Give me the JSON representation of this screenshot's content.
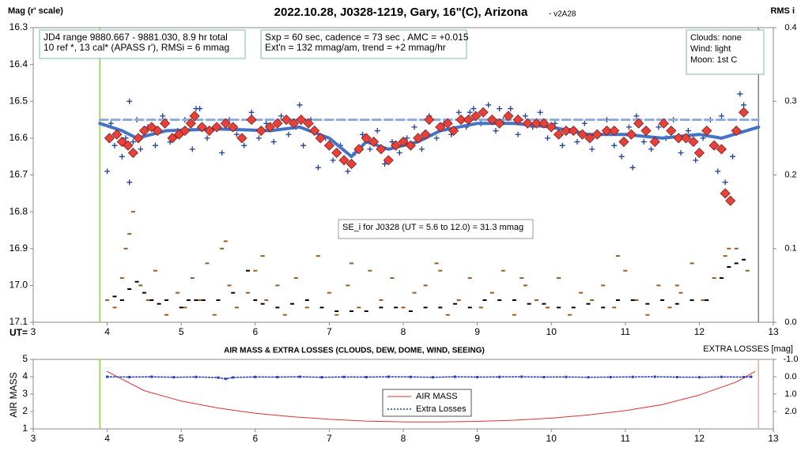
{
  "chart_data": [
    {
      "type": "scatter",
      "title": "2022.10.28, J0328-1219, Gary, 16\"(C), Arizona",
      "subtitle": "- v2A28",
      "ylabel": "Mag (r' scale)",
      "y2label": "RMS i",
      "xlabel": "UT=",
      "xlim": [
        3,
        13
      ],
      "xticks": [
        3,
        4,
        5,
        6,
        7,
        8,
        9,
        10,
        11,
        12,
        13
      ],
      "ylim": [
        16.3,
        17.1
      ],
      "y_inverted": true,
      "yticks": [
        16.3,
        16.4,
        16.5,
        16.6,
        16.7,
        16.8,
        16.9,
        {
          "value": 17,
          "label": "17.0"
        },
        17.1
      ],
      "y2lim": [
        0,
        0.4
      ],
      "y2ticks": [
        {
          "value": 0,
          "label": "0.0"
        },
        0.1,
        0.2,
        0.3,
        0.4
      ],
      "vlines": [
        {
          "x": 3.9,
          "color": "#92d050"
        },
        {
          "x": 12.8,
          "color": "#808080"
        }
      ],
      "annotations": [
        {
          "lines": [
            "JD4 range 9880.667 - 9881.030, 8.9 hr total",
            "10 ref *, 13 cal*  (APASS r'), RMSi = 6 mmag"
          ]
        },
        {
          "lines": [
            "Sxp = 60 sec, cadence = 73 sec , AMC = +0.015",
            "Ext'n = 132 mmag/am, trend = +2 mmag/hr"
          ]
        },
        {
          "lines": [
            "Clouds: none",
            "Wind: light",
            "Moon: 1st C"
          ]
        },
        {
          "lines": [
            "SE_i for J0328 (UT = 5.6 to 12.0) = 31.3 mmag"
          ]
        }
      ],
      "series": [
        {
          "marker": "dash",
          "color": "#9c5b1e",
          "axis": "y2",
          "x": [
            4.0,
            4.1,
            4.2,
            4.25,
            4.35,
            4.45,
            4.55,
            4.65,
            4.8,
            4.95,
            5.05,
            5.15,
            5.25,
            5.35,
            5.45,
            5.55,
            5.65,
            5.75,
            5.9,
            6.0,
            6.15,
            6.3,
            6.4,
            6.55,
            6.7,
            6.85,
            7.0,
            7.1,
            7.25,
            7.4,
            7.55,
            7.7,
            7.85,
            8.0,
            8.15,
            8.3,
            8.45,
            8.6,
            8.75,
            8.9,
            9.05,
            9.2,
            9.35,
            9.5,
            9.65,
            9.8,
            9.95,
            10.1,
            10.25,
            10.4,
            10.55,
            10.7,
            10.85,
            11.0,
            11.15,
            11.3,
            11.45,
            11.6,
            11.75,
            11.9,
            12.05,
            12.2,
            12.35,
            12.5,
            12.65,
            4.3,
            5.6,
            6.1,
            7.3,
            8.5,
            9.6,
            10.9,
            11.7,
            12.4
          ],
          "values": [
            0.03,
            0.02,
            0.06,
            0.1,
            0.15,
            0.05,
            0.03,
            0.07,
            0.01,
            0.04,
            0.02,
            0.06,
            0.03,
            0.08,
            0.01,
            0.1,
            0.05,
            0.02,
            0.04,
            0.07,
            0.03,
            0.05,
            0.01,
            0.06,
            0.02,
            0.09,
            0.04,
            0.01,
            0.05,
            0.02,
            0.07,
            0.03,
            0.06,
            0.02,
            0.04,
            0.05,
            0.08,
            0.01,
            0.03,
            0.06,
            0.02,
            0.04,
            0.07,
            0.01,
            0.05,
            0.03,
            0.02,
            0.06,
            0.01,
            0.04,
            0.03,
            0.05,
            0.02,
            0.07,
            0.03,
            0.01,
            0.05,
            0.02,
            0.04,
            0.08,
            0.03,
            0.06,
            0.09,
            0.1,
            0.07,
            0.12,
            0.11,
            0.09,
            0.08,
            0.07,
            0.06,
            0.09,
            0.05,
            0.1
          ]
        },
        {
          "marker": "dash",
          "color": "#000000",
          "axis": "y2",
          "x": [
            4.1,
            4.2,
            4.3,
            4.4,
            4.5,
            4.6,
            4.7,
            4.8,
            5.0,
            5.1,
            5.2,
            5.3,
            5.5,
            5.7,
            5.9,
            6.0,
            6.1,
            6.3,
            6.5,
            6.7,
            6.9,
            7.1,
            7.3,
            7.5,
            7.7,
            7.9,
            8.1,
            8.3,
            8.5,
            8.7,
            8.9,
            9.1,
            9.3,
            9.5,
            9.7,
            9.9,
            10.1,
            10.3,
            10.5,
            10.7,
            10.9,
            11.1,
            11.3,
            11.5,
            11.7,
            11.9,
            12.1,
            12.3,
            12.4,
            12.5,
            12.6
          ],
          "values": [
            0.035,
            0.03,
            0.045,
            0.055,
            0.04,
            0.03,
            0.025,
            0.03,
            0.02,
            0.03,
            0.03,
            0.03,
            0.03,
            0.04,
            0.07,
            0.03,
            0.025,
            0.02,
            0.025,
            0.03,
            0.02,
            0.015,
            0.015,
            0.015,
            0.02,
            0.02,
            0.015,
            0.02,
            0.02,
            0.025,
            0.02,
            0.03,
            0.03,
            0.03,
            0.025,
            0.025,
            0.02,
            0.02,
            0.025,
            0.02,
            0.03,
            0.03,
            0.025,
            0.03,
            0.025,
            0.03,
            0.03,
            0.06,
            0.075,
            0.08,
            0.085
          ]
        },
        {
          "marker": "plus",
          "color": "#1f3f99",
          "x": [
            4.0,
            4.05,
            4.1,
            4.15,
            4.2,
            4.25,
            4.3,
            4.35,
            4.4,
            4.45,
            4.55,
            4.65,
            4.75,
            4.85,
            4.95,
            5.05,
            5.15,
            5.25,
            5.35,
            5.45,
            5.55,
            5.65,
            5.75,
            5.85,
            5.95,
            6.05,
            6.15,
            6.25,
            6.35,
            6.45,
            6.55,
            6.65,
            6.75,
            6.85,
            6.95,
            7.05,
            7.15,
            7.25,
            7.35,
            7.45,
            7.55,
            7.65,
            7.75,
            7.85,
            7.95,
            8.05,
            8.15,
            8.25,
            8.35,
            8.45,
            8.55,
            8.65,
            8.75,
            8.85,
            8.95,
            9.05,
            9.15,
            9.25,
            9.35,
            9.45,
            9.55,
            9.65,
            9.75,
            9.85,
            9.95,
            10.05,
            10.15,
            10.25,
            10.35,
            10.45,
            10.55,
            10.65,
            10.75,
            10.85,
            10.95,
            11.05,
            11.15,
            11.25,
            11.35,
            11.45,
            11.55,
            11.65,
            11.75,
            11.85,
            11.95,
            12.05,
            12.15,
            12.25,
            12.35,
            12.45,
            12.55,
            12.6,
            4.3,
            5.2,
            6.6,
            8.9,
            9.3,
            11.1,
            12.3
          ],
          "values": [
            16.69,
            16.56,
            16.62,
            16.58,
            16.65,
            16.6,
            16.72,
            16.61,
            16.55,
            16.63,
            16.57,
            16.62,
            16.54,
            16.61,
            16.58,
            16.55,
            16.63,
            16.52,
            16.6,
            16.57,
            16.64,
            16.55,
            16.59,
            16.62,
            16.53,
            16.6,
            16.56,
            16.61,
            16.54,
            16.59,
            16.57,
            16.62,
            16.55,
            16.68,
            16.6,
            16.66,
            16.62,
            16.69,
            16.64,
            16.59,
            16.63,
            16.58,
            16.67,
            16.61,
            16.64,
            16.6,
            16.57,
            16.63,
            16.54,
            16.6,
            16.56,
            16.59,
            16.53,
            16.57,
            16.52,
            16.56,
            16.51,
            16.58,
            16.55,
            16.52,
            16.59,
            16.54,
            16.57,
            16.53,
            16.6,
            16.56,
            16.62,
            16.58,
            16.61,
            16.56,
            16.63,
            16.59,
            16.55,
            16.62,
            16.65,
            16.57,
            16.54,
            16.61,
            16.63,
            16.57,
            16.6,
            16.55,
            16.64,
            16.58,
            16.66,
            16.6,
            16.55,
            16.69,
            16.72,
            16.65,
            16.48,
            16.51,
            16.5,
            16.52,
            16.51,
            16.53,
            16.52,
            16.68,
            16.54
          ]
        },
        {
          "marker": "line",
          "line_style": "dashed",
          "color": "#8eaadb",
          "width": 3,
          "x": [
            3.9,
            12.8
          ],
          "values": [
            16.55,
            16.55
          ]
        },
        {
          "marker": "line",
          "line_style": "solid",
          "color": "#4472c4",
          "width": 4,
          "x": [
            3.9,
            4.2,
            4.4,
            4.8,
            5.5,
            6.2,
            6.6,
            7.0,
            7.3,
            7.5,
            7.8,
            8.2,
            8.5,
            9.0,
            9.5,
            10.0,
            10.5,
            11.0,
            11.5,
            12.0,
            12.3,
            12.8
          ],
          "values": [
            16.56,
            16.58,
            16.6,
            16.58,
            16.575,
            16.58,
            16.57,
            16.6,
            16.65,
            16.61,
            16.63,
            16.61,
            16.58,
            16.56,
            16.56,
            16.57,
            16.59,
            16.59,
            16.6,
            16.59,
            16.6,
            16.57
          ]
        },
        {
          "marker": "diamond",
          "color": "#e8413c",
          "x": [
            4.03,
            4.13,
            4.2,
            4.28,
            4.35,
            4.42,
            4.5,
            4.6,
            4.68,
            4.78,
            4.88,
            4.97,
            5.05,
            5.13,
            5.18,
            5.28,
            5.38,
            5.48,
            5.6,
            5.7,
            5.82,
            5.95,
            6.08,
            6.2,
            6.3,
            6.42,
            6.52,
            6.62,
            6.72,
            6.8,
            6.88,
            7.0,
            7.1,
            7.2,
            7.3,
            7.4,
            7.5,
            7.6,
            7.7,
            7.8,
            7.9,
            8.0,
            8.1,
            8.2,
            8.3,
            8.35,
            8.5,
            8.6,
            8.68,
            8.78,
            8.88,
            8.98,
            9.08,
            9.2,
            9.3,
            9.42,
            9.55,
            9.68,
            9.8,
            9.9,
            10.0,
            10.1,
            10.2,
            10.3,
            10.42,
            10.52,
            10.62,
            10.75,
            10.85,
            10.98,
            11.08,
            11.18,
            11.28,
            11.4,
            11.52,
            11.62,
            11.72,
            11.82,
            11.92,
            12.0,
            12.1,
            12.2,
            12.3,
            12.35,
            12.42,
            12.5,
            12.6
          ],
          "values": [
            16.6,
            16.59,
            16.61,
            16.62,
            16.64,
            16.6,
            16.58,
            16.57,
            16.58,
            16.56,
            16.6,
            16.59,
            16.58,
            16.56,
            16.54,
            16.57,
            16.58,
            16.57,
            16.56,
            16.57,
            16.6,
            16.55,
            16.58,
            16.57,
            16.56,
            16.55,
            16.56,
            16.55,
            16.56,
            16.58,
            16.6,
            16.62,
            16.64,
            16.66,
            16.67,
            16.63,
            16.6,
            16.61,
            16.63,
            16.66,
            16.62,
            16.61,
            16.62,
            16.6,
            16.59,
            16.55,
            16.57,
            16.56,
            16.58,
            16.55,
            16.55,
            16.54,
            16.53,
            16.55,
            16.56,
            16.54,
            16.55,
            16.56,
            16.56,
            16.56,
            16.57,
            16.59,
            16.58,
            16.58,
            16.59,
            16.6,
            16.59,
            16.58,
            16.58,
            16.61,
            16.59,
            16.56,
            16.58,
            16.61,
            16.56,
            16.58,
            16.6,
            16.6,
            16.61,
            16.64,
            16.58,
            16.62,
            16.63,
            16.75,
            16.77,
            16.58,
            16.53
          ]
        }
      ]
    },
    {
      "type": "line",
      "title": "AIR MASS & EXTRA LOSSES (CLOUDS, DEW, DOME, WIND, SEEING)",
      "ylabel": "AIR MASS",
      "y2label": "EXTRA LOSSES [mag]",
      "xlim": [
        3,
        13
      ],
      "xticks": [
        3,
        4,
        5,
        6,
        7,
        8,
        9,
        10,
        11,
        12,
        13
      ],
      "ylim": [
        1,
        5
      ],
      "yticks": [
        1,
        2,
        3,
        4,
        5
      ],
      "y2lim": [
        -1,
        3
      ],
      "y2_inverted": true,
      "y2ticks": [
        {
          "value": -1,
          "label": "-1.0"
        },
        {
          "value": 0,
          "label": "0.0"
        },
        {
          "value": 1,
          "label": "1.0"
        },
        {
          "value": 2,
          "label": "2.0"
        }
      ],
      "vlines": [
        {
          "x": 3.9,
          "color": "#92d050"
        },
        {
          "x": 12.8,
          "color": "#f4a6a0"
        }
      ],
      "series": [
        {
          "name": "AIR MASS",
          "marker": "line",
          "line_style": "solid",
          "color": "#e03030",
          "width": 1,
          "x": [
            4.0,
            4.5,
            5.0,
            5.5,
            6.0,
            6.5,
            7.0,
            7.5,
            8.0,
            8.5,
            9.0,
            9.5,
            10.0,
            10.5,
            11.0,
            11.5,
            12.0,
            12.5,
            12.75
          ],
          "values": [
            4.3,
            3.2,
            2.6,
            2.2,
            1.9,
            1.7,
            1.55,
            1.45,
            1.4,
            1.4,
            1.43,
            1.5,
            1.62,
            1.8,
            2.05,
            2.4,
            2.95,
            3.7,
            4.3
          ]
        },
        {
          "name": "Extra Losses",
          "marker": "line",
          "line_style": "dotted",
          "points": true,
          "color": "#1f3fbf",
          "width": 1.5,
          "axis": "y2",
          "x": [
            4.0,
            4.3,
            4.6,
            4.9,
            5.2,
            5.5,
            5.6,
            5.7,
            6.0,
            6.3,
            6.6,
            6.9,
            7.2,
            7.5,
            7.8,
            8.1,
            8.4,
            8.7,
            9.0,
            9.3,
            9.6,
            9.9,
            10.2,
            10.5,
            10.8,
            11.1,
            11.4,
            11.7,
            12.0,
            12.3,
            12.6,
            12.7
          ],
          "values": [
            0.0,
            0.02,
            0.0,
            0.03,
            0.01,
            0.05,
            0.12,
            0.04,
            0.01,
            0.02,
            0.0,
            0.03,
            0.01,
            0.02,
            0.0,
            0.01,
            0.03,
            0.0,
            0.02,
            0.01,
            0.0,
            0.02,
            0.01,
            0.03,
            0.02,
            0.01,
            0.0,
            0.02,
            0.03,
            0.01,
            0.02,
            0.0
          ]
        }
      ]
    }
  ]
}
